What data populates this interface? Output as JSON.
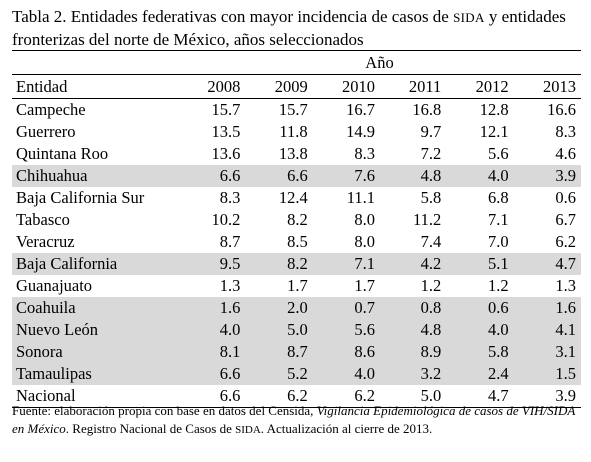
{
  "title": {
    "part1": "Tabla 2. Entidades federativas con mayor incidencia de casos de ",
    "sida": "SIDA",
    "part2": " y entidades fronterizas del norte de México, años seleccionados"
  },
  "header": {
    "group_label": "Año",
    "entity_label": "Entidad",
    "years": [
      "2008",
      "2009",
      "2010",
      "2011",
      "2012",
      "2013"
    ]
  },
  "rows": [
    {
      "entity": "Campeche",
      "values": [
        "15.7",
        "15.7",
        "16.7",
        "16.8",
        "12.8",
        "16.6"
      ],
      "shaded": false
    },
    {
      "entity": "Guerrero",
      "values": [
        "13.5",
        "11.8",
        "14.9",
        "9.7",
        "12.1",
        "8.3"
      ],
      "shaded": false
    },
    {
      "entity": "Quintana Roo",
      "values": [
        "13.6",
        "13.8",
        "8.3",
        "7.2",
        "5.6",
        "4.6"
      ],
      "shaded": false
    },
    {
      "entity": "Chihuahua",
      "values": [
        "6.6",
        "6.6",
        "7.6",
        "4.8",
        "4.0",
        "3.9"
      ],
      "shaded": true
    },
    {
      "entity": "Baja California Sur",
      "values": [
        "8.3",
        "12.4",
        "11.1",
        "5.8",
        "6.8",
        "0.6"
      ],
      "shaded": false
    },
    {
      "entity": "Tabasco",
      "values": [
        "10.2",
        "8.2",
        "8.0",
        "11.2",
        "7.1",
        "6.7"
      ],
      "shaded": false
    },
    {
      "entity": "Veracruz",
      "values": [
        "8.7",
        "8.5",
        "8.0",
        "7.4",
        "7.0",
        "6.2"
      ],
      "shaded": false
    },
    {
      "entity": "Baja California",
      "values": [
        "9.5",
        "8.2",
        "7.1",
        "4.2",
        "5.1",
        "4.7"
      ],
      "shaded": true
    },
    {
      "entity": "Guanajuato",
      "values": [
        "1.3",
        "1.7",
        "1.7",
        "1.2",
        "1.2",
        "1.3"
      ],
      "shaded": false
    },
    {
      "entity": "Coahuila",
      "values": [
        "1.6",
        "2.0",
        "0.7",
        "0.8",
        "0.6",
        "1.6"
      ],
      "shaded": true
    },
    {
      "entity": "Nuevo León",
      "values": [
        "4.0",
        "5.0",
        "5.6",
        "4.8",
        "4.0",
        "4.1"
      ],
      "shaded": true
    },
    {
      "entity": "Sonora",
      "values": [
        "8.1",
        "8.7",
        "8.6",
        "8.9",
        "5.8",
        "3.1"
      ],
      "shaded": true
    },
    {
      "entity": "Tamaulipas",
      "values": [
        "6.6",
        "5.2",
        "4.0",
        "3.2",
        "2.4",
        "1.5"
      ],
      "shaded": true
    },
    {
      "entity": "Nacional",
      "values": [
        "6.6",
        "6.2",
        "6.2",
        "5.0",
        "4.7",
        "3.9"
      ],
      "shaded": false
    }
  ],
  "source": {
    "text1": "Fuente: elaboración propia con base en datos del Censida, ",
    "italic": "Vigilancia Epidemiológica de casos de VIH/SIDA en México",
    "text2": ". Registro Nacional de Casos de ",
    "sida": "SIDA",
    "text3": ". Actualización al cierre de 2013."
  },
  "colors": {
    "shade": "#d9d9d9",
    "text": "#000000",
    "background": "#ffffff"
  }
}
